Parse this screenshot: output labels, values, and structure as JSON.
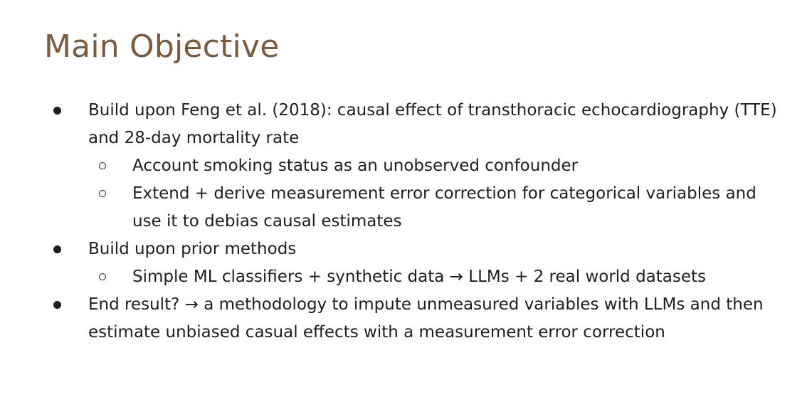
{
  "slide": {
    "title": "Main Objective",
    "bullets": [
      {
        "text": "Build upon Feng et al. (2018): causal effect of transthoracic echocardiography (TTE) and 28-day mortality rate",
        "sub": [
          "Account smoking status as an unobserved confounder",
          "Extend + derive measurement error correction for categorical variables and use it to debias causal estimates"
        ]
      },
      {
        "text": "Build upon prior methods",
        "sub": [
          "Simple ML classifiers + synthetic data → LLMs + 2 real world datasets"
        ]
      },
      {
        "text": "End result? → a methodology to impute unmeasured variables with LLMs and then estimate unbiased casual effects with a measurement error correction",
        "sub": []
      }
    ]
  }
}
